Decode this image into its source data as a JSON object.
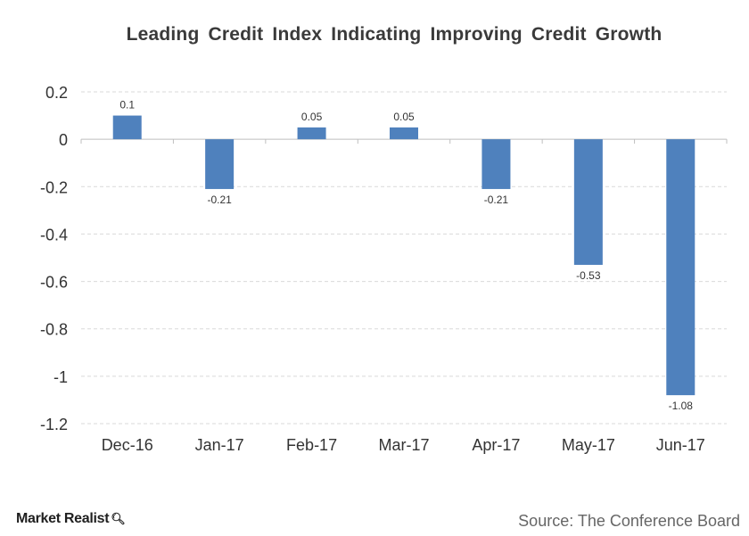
{
  "chart_data": {
    "type": "bar",
    "title": "Leading Credit Index Indicating Improving Credit Growth",
    "categories": [
      "Dec-16",
      "Jan-17",
      "Feb-17",
      "Mar-17",
      "Apr-17",
      "May-17",
      "Jun-17"
    ],
    "values": [
      0.1,
      -0.21,
      0.05,
      0.05,
      -0.21,
      -0.53,
      -1.08
    ],
    "data_labels": [
      "0.1",
      "-0.21",
      "0.05",
      "0.05",
      "-0.21",
      "-0.53",
      "-1.08"
    ],
    "yticks": [
      "0.2",
      "0",
      "-0.2",
      "-0.4",
      "-0.6",
      "-0.8",
      "-1",
      "-1.2"
    ],
    "ytick_values": [
      0.2,
      0,
      -0.2,
      -0.4,
      -0.6,
      -0.8,
      -1,
      -1.2
    ],
    "ylim": [
      -1.2,
      0.2
    ],
    "xlabel": "",
    "ylabel": "",
    "grid": true,
    "bar_color": "#4f81bd"
  },
  "footer": {
    "logo_text": "Market Realist",
    "logo_icon": "magnifier-icon",
    "source": "Source: The Conference Board"
  }
}
